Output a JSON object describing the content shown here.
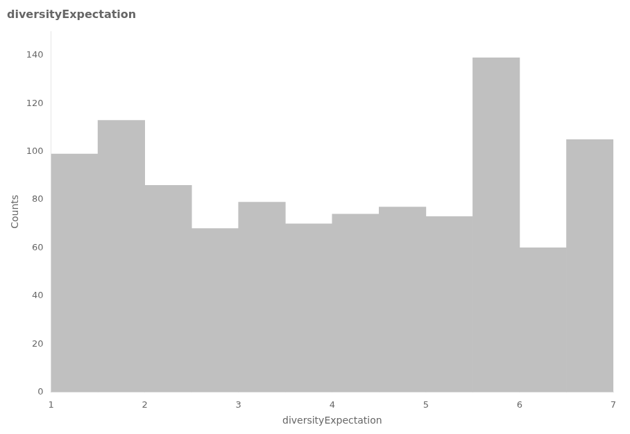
{
  "chart_data": {
    "type": "histogram",
    "title": "diversityExpectation",
    "xlabel": "diversityExpectation",
    "ylabel": "Counts",
    "bins": [
      1,
      1.5,
      2,
      2.5,
      3,
      3.5,
      4,
      4.5,
      5,
      5.5,
      6,
      6.5,
      7
    ],
    "values": [
      99,
      113,
      86,
      68,
      79,
      70,
      74,
      77,
      73,
      139,
      60,
      105
    ],
    "color": "#c0c0c0",
    "xlim": [
      1,
      7
    ],
    "ylim": [
      0,
      150
    ],
    "xticks": [
      1,
      2,
      3,
      4,
      5,
      6,
      7
    ],
    "yticks": [
      0,
      20,
      40,
      60,
      80,
      100,
      120,
      140
    ],
    "grid": false
  }
}
